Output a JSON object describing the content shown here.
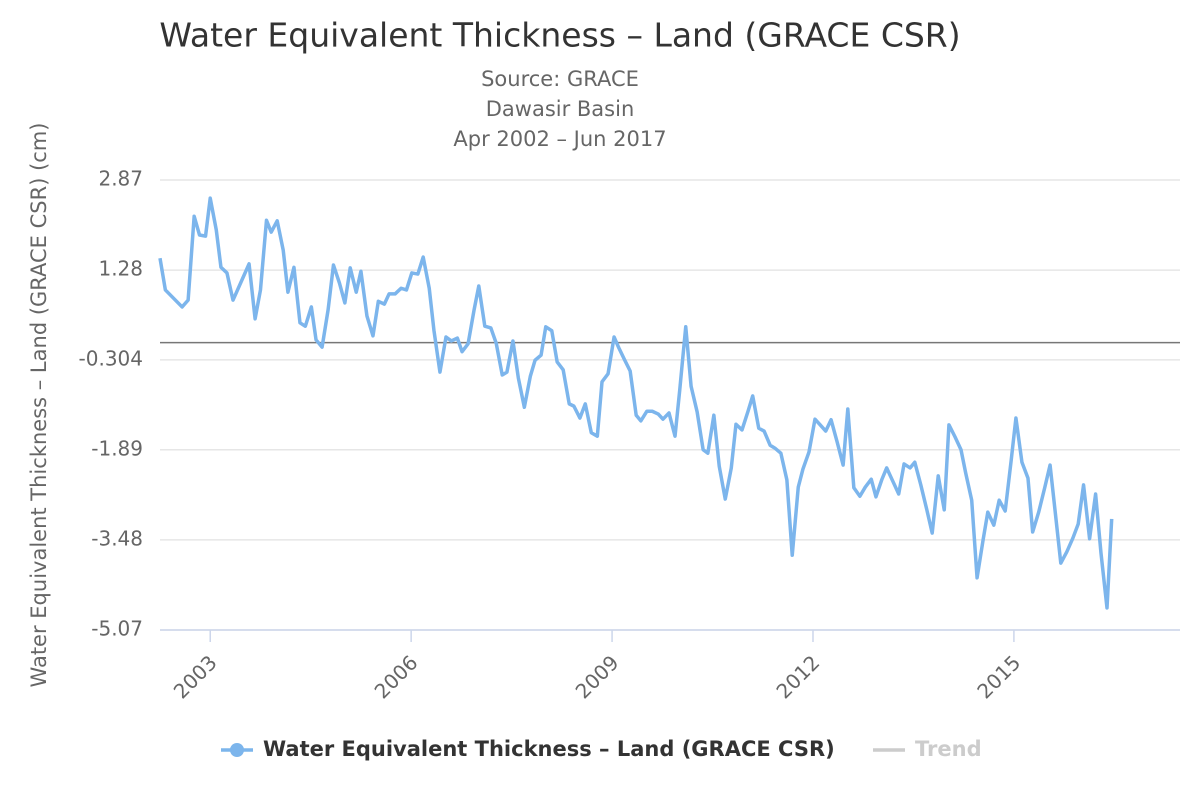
{
  "chart_data": {
    "type": "line",
    "title": "Water Equivalent Thickness – Land (GRACE CSR)",
    "subtitle": [
      "Source: GRACE",
      "Dawasir Basin",
      "Apr 2002 – Jun 2017"
    ],
    "y_label": "Water Equivalent Thickness – Land (GRACE CSR) (cm)",
    "xlim": [
      2002.25,
      2017.48
    ],
    "xticks": [
      2003,
      2006,
      2009,
      2012,
      2015
    ],
    "ylim": [
      -5.07,
      2.87
    ],
    "yticks": [
      2.87,
      1.28,
      -0.304,
      -1.89,
      -3.48,
      -5.07
    ],
    "grid": true,
    "x": [
      2002.25,
      2002.33,
      2002.58,
      2002.67,
      2002.76,
      2002.84,
      2002.93,
      2003.0,
      2003.09,
      2003.16,
      2003.25,
      2003.34,
      2003.58,
      2003.67,
      2003.75,
      2003.84,
      2003.91,
      2004.0,
      2004.09,
      2004.16,
      2004.25,
      2004.34,
      2004.42,
      2004.51,
      2004.58,
      2004.67,
      2004.76,
      2004.84,
      2004.93,
      2005.01,
      2005.09,
      2005.18,
      2005.25,
      2005.34,
      2005.43,
      2005.51,
      2005.6,
      2005.67,
      2005.76,
      2005.85,
      2005.93,
      2006.01,
      2006.1,
      2006.18,
      2006.27,
      2006.34,
      2006.43,
      2006.52,
      2006.6,
      2006.69,
      2006.76,
      2006.85,
      2006.94,
      2007.01,
      2007.1,
      2007.19,
      2007.27,
      2007.36,
      2007.43,
      2007.52,
      2007.6,
      2007.69,
      2007.78,
      2007.85,
      2007.94,
      2008.01,
      2008.1,
      2008.18,
      2008.27,
      2008.36,
      2008.43,
      2008.52,
      2008.6,
      2008.69,
      2008.78,
      2008.85,
      2008.94,
      2009.03,
      2009.1,
      2009.19,
      2009.27,
      2009.36,
      2009.43,
      2009.52,
      2009.6,
      2009.69,
      2009.76,
      2009.85,
      2009.94,
      2010.01,
      2010.1,
      2010.18,
      2010.27,
      2010.36,
      2010.43,
      2010.52,
      2010.6,
      2010.69,
      2010.78,
      2010.85,
      2010.94,
      2011.03,
      2011.1,
      2011.19,
      2011.27,
      2011.36,
      2011.43,
      2011.52,
      2011.61,
      2011.69,
      2011.78,
      2011.85,
      2011.94,
      2012.03,
      2012.1,
      2012.19,
      2012.27,
      2012.36,
      2012.45,
      2012.52,
      2012.61,
      2012.7,
      2012.78,
      2012.87,
      2012.94,
      2013.03,
      2013.1,
      2013.19,
      2013.28,
      2013.36,
      2013.45,
      2013.52,
      2013.61,
      2013.7,
      2013.78,
      2013.87,
      2013.96,
      2014.03,
      2014.12,
      2014.21,
      2014.28,
      2014.37,
      2014.45,
      2014.54,
      2014.61,
      2014.7,
      2014.78,
      2014.87,
      2014.96,
      2015.03,
      2015.12,
      2015.21,
      2015.28,
      2015.37,
      2015.46,
      2015.54,
      2015.63,
      2015.7,
      2015.79,
      2015.88,
      2015.96,
      2016.04,
      2016.13,
      2016.22,
      2016.3,
      2016.39,
      2016.46
    ],
    "series": [
      {
        "name": "Water Equivalent Thickness – Land (GRACE CSR)",
        "color": "#7cb5ec",
        "values": [
          1.49,
          0.93,
          0.63,
          0.75,
          2.23,
          1.9,
          1.88,
          2.55,
          1.99,
          1.33,
          1.23,
          0.75,
          1.39,
          0.42,
          0.93,
          2.16,
          1.95,
          2.15,
          1.63,
          0.89,
          1.33,
          0.35,
          0.29,
          0.63,
          0.05,
          -0.08,
          0.58,
          1.37,
          1.05,
          0.7,
          1.32,
          0.89,
          1.26,
          0.47,
          0.12,
          0.73,
          0.68,
          0.86,
          0.86,
          0.96,
          0.93,
          1.23,
          1.21,
          1.51,
          0.96,
          0.22,
          -0.52,
          0.1,
          0.03,
          0.08,
          -0.16,
          -0.02,
          0.58,
          1.0,
          0.29,
          0.26,
          -0.01,
          -0.57,
          -0.52,
          0.03,
          -0.62,
          -1.14,
          -0.59,
          -0.31,
          -0.22,
          0.28,
          0.21,
          -0.34,
          -0.48,
          -1.08,
          -1.12,
          -1.33,
          -1.08,
          -1.59,
          -1.65,
          -0.69,
          -0.55,
          0.1,
          -0.09,
          -0.31,
          -0.5,
          -1.28,
          -1.38,
          -1.21,
          -1.21,
          -1.26,
          -1.35,
          -1.24,
          -1.65,
          -0.84,
          0.28,
          -0.77,
          -1.22,
          -1.89,
          -1.95,
          -1.28,
          -2.18,
          -2.76,
          -2.21,
          -1.44,
          -1.54,
          -1.21,
          -0.94,
          -1.51,
          -1.56,
          -1.81,
          -1.86,
          -1.95,
          -2.42,
          -3.75,
          -2.55,
          -2.23,
          -1.93,
          -1.35,
          -1.44,
          -1.56,
          -1.36,
          -1.75,
          -2.16,
          -1.17,
          -2.56,
          -2.71,
          -2.55,
          -2.41,
          -2.72,
          -2.41,
          -2.21,
          -2.44,
          -2.67,
          -2.14,
          -2.21,
          -2.11,
          -2.51,
          -2.95,
          -3.36,
          -2.35,
          -2.95,
          -1.45,
          -1.66,
          -1.89,
          -2.3,
          -2.78,
          -4.15,
          -3.48,
          -2.99,
          -3.22,
          -2.78,
          -2.97,
          -2.07,
          -1.33,
          -2.11,
          -2.39,
          -3.34,
          -2.99,
          -2.56,
          -2.16,
          -3.13,
          -3.89,
          -3.69,
          -3.45,
          -3.2,
          -2.51,
          -3.46,
          -2.67,
          -3.71,
          -4.68,
          -3.11
        ]
      }
    ],
    "trend": {
      "name": "Trend",
      "color": "#cccccc",
      "visible": false
    }
  }
}
